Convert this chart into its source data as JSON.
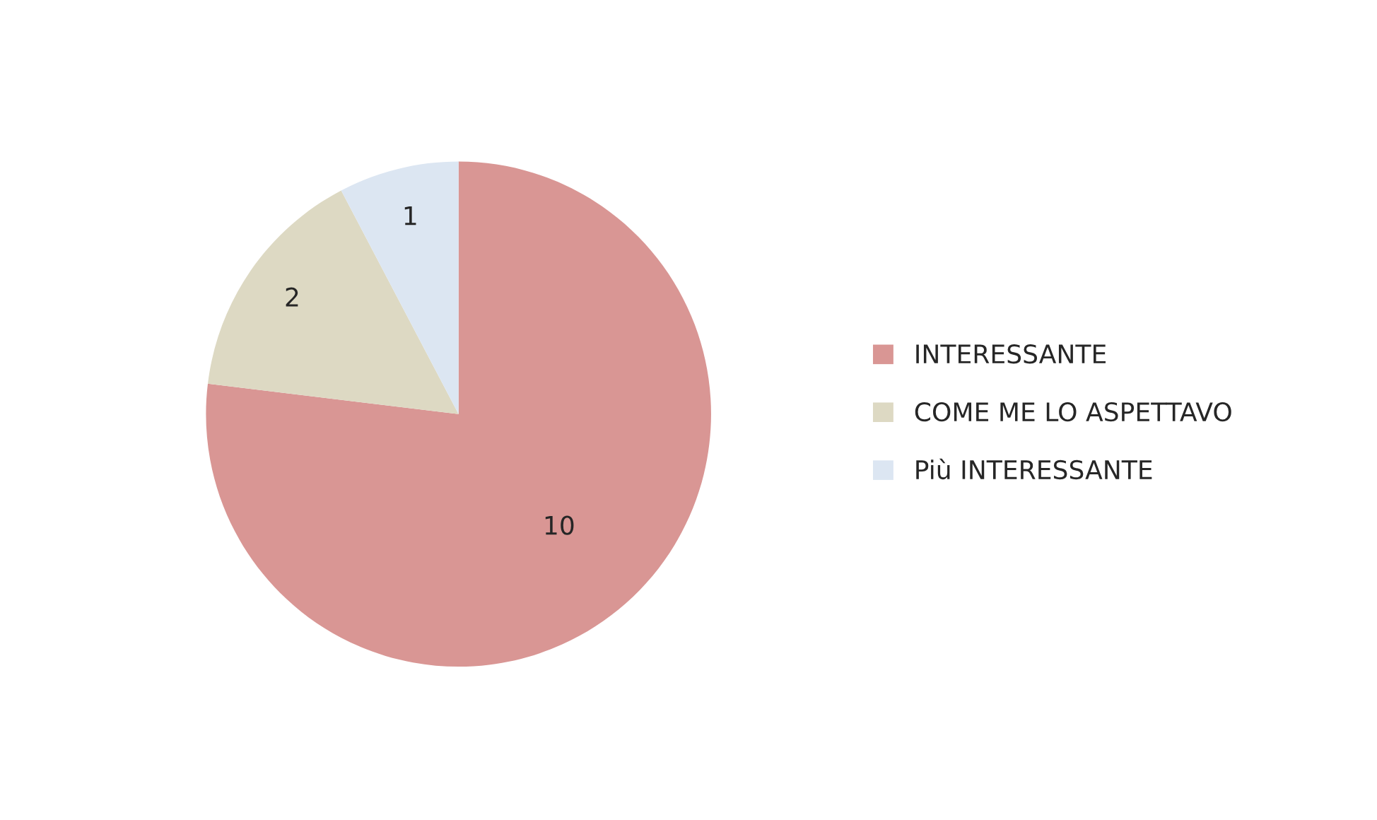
{
  "chart_data": {
    "type": "pie",
    "categories": [
      "INTERESSANTE",
      "COME ME LO ASPETTAVO",
      "Più INTERESSANTE"
    ],
    "values": [
      10,
      2,
      1
    ],
    "colors": [
      "#d99694",
      "#ddd9c3",
      "#dce6f2"
    ],
    "data_labels": true,
    "legend": "right"
  }
}
